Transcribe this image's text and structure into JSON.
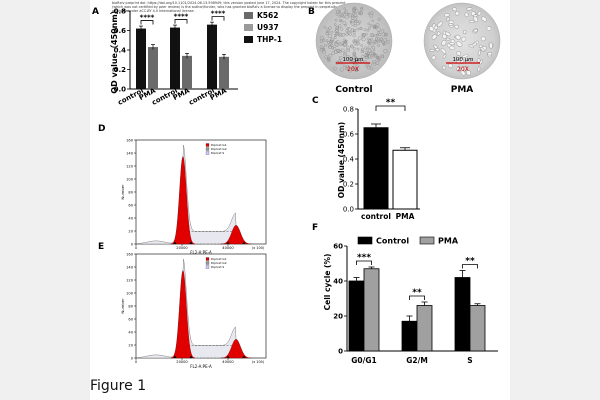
{
  "preprint_banner": [
    "bioRxiv preprint doi: https://doi.org/10.1101/2024.06.13.598949; this version posted June 17, 2024. The copyright holder for this preprint",
    "(which was not certified by peer review) is the author/funder, who has granted bioRxiv a license to display the preprint in perpetuity. It is made",
    "available under aCC-BY 4.0 International license."
  ],
  "figure_title": "Figure 1",
  "panel_A": {
    "letter": "A",
    "chart_data": {
      "type": "bar",
      "ylabel": "OD value（450nm）",
      "ylim": [
        0,
        0.8
      ],
      "yticks": [
        "0.0",
        "0.2",
        "0.4",
        "0.6",
        "0.8"
      ],
      "groups": [
        {
          "legend": "K562",
          "categories": [
            "control",
            "PMA"
          ],
          "values": [
            0.62,
            0.43
          ],
          "sig": "****"
        },
        {
          "legend": "U937",
          "categories": [
            "control",
            "PMA"
          ],
          "values": [
            0.63,
            0.34
          ],
          "sig": "****"
        },
        {
          "legend": "THP-1",
          "categories": [
            "control",
            "PMA"
          ],
          "values": [
            0.66,
            0.33
          ],
          "sig": "****"
        }
      ],
      "colors": {
        "control": "#111111",
        "PMA": "#6a6a6a"
      }
    }
  },
  "panel_B": {
    "letter": "B",
    "images": [
      {
        "caption": "Control",
        "scale": "100 μm",
        "mag": "20X"
      },
      {
        "caption": "PMA",
        "scale": "100 μm",
        "mag": "20X"
      }
    ]
  },
  "panel_C": {
    "letter": "C",
    "chart_data": {
      "type": "bar",
      "categories": [
        "control",
        "PMA"
      ],
      "values": [
        0.65,
        0.47
      ],
      "errors": [
        0.03,
        0.02
      ],
      "ylabel": "OD value (450nm)",
      "ylim": [
        0,
        0.8
      ],
      "yticks": [
        "0.0",
        "0.2",
        "0.4",
        "0.6",
        "0.8"
      ],
      "sig": "**",
      "colors": [
        "#000000",
        "#ffffff"
      ]
    }
  },
  "panel_D": {
    "letter": "D",
    "xlabel": "FL2-A:PE-A",
    "ylabel": "Number",
    "xticks": [
      "0",
      "20000",
      "40000"
    ],
    "x_unit": "(x 100)",
    "yticks": [
      "0",
      "20",
      "40",
      "60",
      "80",
      "100",
      "120",
      "140",
      "160"
    ],
    "legend": [
      "Diploid G1",
      "Diploid G2",
      "Diploid S"
    ]
  },
  "panel_E": {
    "letter": "E",
    "xlabel": "FL2-A:PE-A",
    "ylabel": "Number",
    "xticks": [
      "0",
      "20000",
      "40000"
    ],
    "x_unit": "(x 100)",
    "yticks": [
      "0",
      "20",
      "40",
      "60",
      "80",
      "100",
      "120",
      "140",
      "160"
    ],
    "legend": [
      "Diploid G1",
      "Diploid G2",
      "Diploid S"
    ]
  },
  "panel_F": {
    "letter": "F",
    "chart_data": {
      "type": "bar",
      "categories": [
        "G0/G1",
        "G2/M",
        "S"
      ],
      "series": [
        {
          "name": "Control",
          "values": [
            40,
            17,
            42
          ],
          "errors": [
            2,
            3,
            4
          ],
          "color": "#000000"
        },
        {
          "name": "PMA",
          "values": [
            47,
            26,
            26
          ],
          "errors": [
            1,
            2,
            1
          ],
          "color": "#a0a0a0"
        }
      ],
      "ylabel": "Cell cycle (%)",
      "ylim": [
        0,
        60
      ],
      "yticks": [
        "0",
        "20",
        "40",
        "60"
      ],
      "sig": [
        "***",
        "**",
        "**"
      ],
      "legend_position": "top"
    }
  }
}
